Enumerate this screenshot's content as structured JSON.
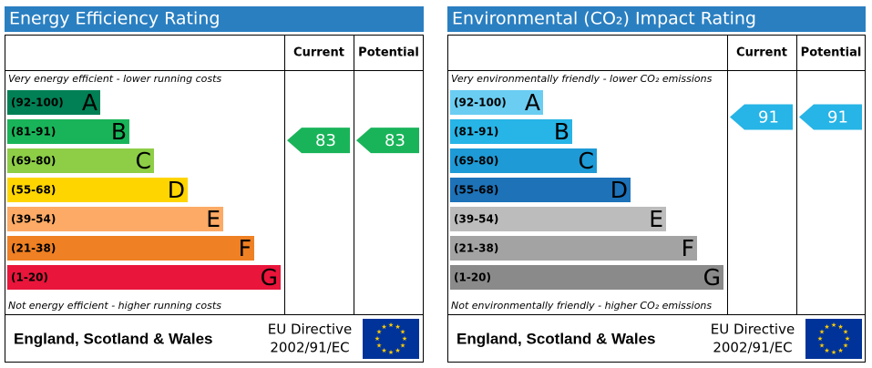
{
  "panels": [
    {
      "title": "Energy Efficiency Rating",
      "col_current": "Current",
      "col_potential": "Potential",
      "top_note": "Very energy efficient - lower running costs",
      "bottom_note": "Not energy efficient - higher running costs",
      "bands": [
        {
          "range": "(92-100)",
          "letter": "A",
          "color": "#008054"
        },
        {
          "range": "(81-91)",
          "letter": "B",
          "color": "#19b459"
        },
        {
          "range": "(69-80)",
          "letter": "C",
          "color": "#8dce46"
        },
        {
          "range": "(55-68)",
          "letter": "D",
          "color": "#ffd500"
        },
        {
          "range": "(39-54)",
          "letter": "E",
          "color": "#fcaa65"
        },
        {
          "range": "(21-38)",
          "letter": "F",
          "color": "#ef8023"
        },
        {
          "range": "(1-20)",
          "letter": "G",
          "color": "#e9153b"
        }
      ],
      "current": 83,
      "potential": 83,
      "footer": "England, Scotland & Wales",
      "directive": [
        "EU Directive",
        "2002/91/EC"
      ]
    },
    {
      "title": "Environmental (CO₂) Impact Rating",
      "col_current": "Current",
      "col_potential": "Potential",
      "top_note": "Very environmentally friendly - lower CO₂ emissions",
      "bottom_note": "Not environmentally friendly - higher CO₂ emissions",
      "bands": [
        {
          "range": "(92-100)",
          "letter": "A",
          "color": "#6bcdf2"
        },
        {
          "range": "(81-91)",
          "letter": "B",
          "color": "#27b4e6"
        },
        {
          "range": "(69-80)",
          "letter": "C",
          "color": "#1e9ad6"
        },
        {
          "range": "(55-68)",
          "letter": "D",
          "color": "#1d72b8"
        },
        {
          "range": "(39-54)",
          "letter": "E",
          "color": "#bcbcbc"
        },
        {
          "range": "(21-38)",
          "letter": "F",
          "color": "#a3a3a3"
        },
        {
          "range": "(1-20)",
          "letter": "G",
          "color": "#8a8a8a"
        }
      ],
      "current": 91,
      "potential": 91,
      "footer": "England, Scotland & Wales",
      "directive": [
        "EU Directive",
        "2002/91/EC"
      ]
    }
  ]
}
